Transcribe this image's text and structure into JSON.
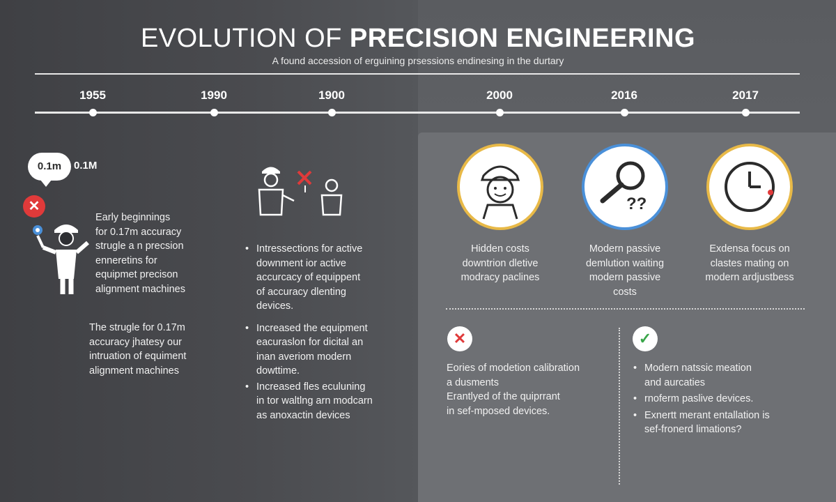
{
  "header": {
    "title_light": "EVOLUTION OF",
    "title_bold": "PRECISION ENGINEERING",
    "subtitle": "A found accession of erguining prsessions endinesing in the durtary"
  },
  "timeline": {
    "years": [
      "1955",
      "1990",
      "1900",
      "2000",
      "2016",
      "2017"
    ]
  },
  "left": {
    "bubble_label": "0.1m",
    "bubble_side_label": "0.1M",
    "intro_lines": [
      "Early beginnings",
      "for 0.17m accuracy",
      "strugle a n precsion",
      "enneretins for",
      "equipmet precison",
      "alignment machines"
    ],
    "struggle_lines": [
      "The strugle for 0.17m",
      "accuracy jhatesy our",
      "intruation of equiment",
      "alignment machines"
    ]
  },
  "middle": {
    "bullets": [
      [
        "Intressections for active",
        "downment ior active",
        "accurcacy of equippent",
        "of accuracy dlenting",
        "devices."
      ],
      [
        "Increased the equipment",
        "eacuraslon for dicital an",
        "inan averiom modern",
        "dowttime."
      ],
      [
        "Increased fles eculuning",
        "in tor waltlng arn modcarn",
        "as anoxactin devices"
      ]
    ]
  },
  "right": {
    "icon_captions": [
      [
        "Hidden costs",
        "downtrion dletive",
        "modracy paclines"
      ],
      [
        "Modern passive",
        "demlution waiting",
        "modern passive",
        "costs"
      ],
      [
        "Exdensa focus on",
        "clastes mating on",
        "modern ardjustbess"
      ]
    ],
    "question_marks": "??",
    "bad_lines": [
      "Eories of modetion calibration",
      "a dusments",
      "Erantlyed of the quiprrant",
      "in sef-mposed devices."
    ],
    "good_bullets": [
      [
        "Modern natssic meation",
        "and aurcaties"
      ],
      [
        "rnoferm paslive devices."
      ],
      [
        "Exnertt merant entallation is",
        "sef-fronerd limations?"
      ]
    ]
  },
  "colors": {
    "accent_red": "#e03a3a",
    "accent_green": "#3aa64a",
    "accent_gold": "#e8b947",
    "accent_blue": "#4a90d9"
  }
}
